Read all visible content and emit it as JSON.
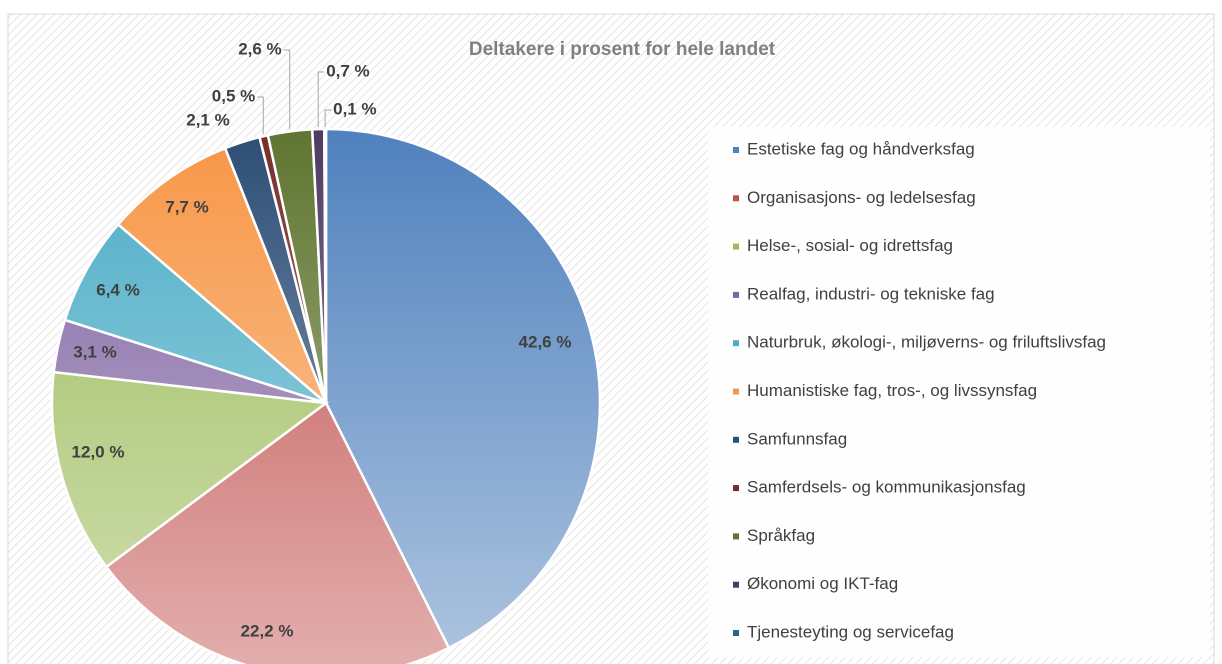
{
  "chart_data": {
    "type": "pie",
    "title": "Deltakere i prosent for hele landet",
    "categories": [
      "Estetiske fag og håndverksfag",
      "Organisasjons- og ledelsesfag",
      "Helse-, sosial- og idrettsfag",
      "Realfag, industri- og tekniske fag",
      "Naturbruk, økologi-, miljøverns- og friluftslivsfag",
      "Humanistiske fag, tros-, og livssynsfag",
      "Samfunnsfag",
      "Samferdsels- og kommunikasjonsfag",
      "Språkfag",
      "Økonomi og IKT-fag",
      "Tjenesteyting og servicefag"
    ],
    "values": [
      42.6,
      22.2,
      12.0,
      3.1,
      6.4,
      7.7,
      2.1,
      0.5,
      2.6,
      0.7,
      0.1
    ],
    "value_labels": [
      "42,6 %",
      "22,2 %",
      "12,0 %",
      "3,1 %",
      "6,4 %",
      "7,7 %",
      "2,1 %",
      "0,5 %",
      "2,6 %",
      "0,7 %",
      "0,1 %"
    ],
    "colors": [
      "#4f81bd",
      "#c0504d",
      "#9bbb59",
      "#8064a2",
      "#4bacc6",
      "#f79646",
      "#2c4d75",
      "#772c2a",
      "#5f7530",
      "#4d3b62",
      "#276a7c"
    ],
    "legend": "right"
  }
}
